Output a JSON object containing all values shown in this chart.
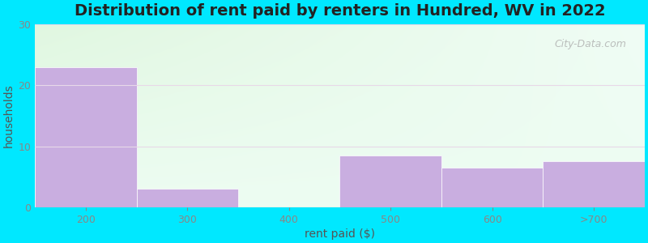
{
  "title": "Distribution of rent paid by renters in Hundred, WV in 2022",
  "categories": [
    "200",
    "300",
    "400",
    "500",
    "600",
    ">700"
  ],
  "values": [
    23,
    3,
    0,
    8.5,
    6.5,
    7.5
  ],
  "bar_color": "#c9aee0",
  "bar_edgecolor": "#c9aee0",
  "xlabel": "rent paid ($)",
  "ylabel": "households",
  "ylim": [
    0,
    30
  ],
  "yticks": [
    0,
    10,
    20,
    30
  ],
  "background_outer": "#00e8ff",
  "title_fontsize": 14,
  "axis_label_fontsize": 10,
  "tick_fontsize": 9,
  "watermark": "City-Data.com"
}
